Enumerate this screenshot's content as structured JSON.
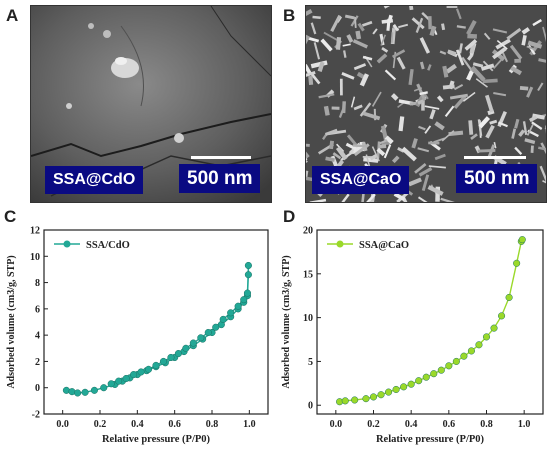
{
  "panels": {
    "A": {
      "letter": "A",
      "sample_label": "SSA@CdO",
      "scale_label": "500 nm"
    },
    "B": {
      "letter": "B",
      "sample_label": "SSA@CaO",
      "scale_label": "500 nm"
    },
    "C": {
      "letter": "C"
    },
    "D": {
      "letter": "D"
    }
  },
  "chart_data": [
    {
      "type": "line",
      "panel": "C",
      "xlabel": "Relative pressure (P/P0)",
      "ylabel": "Adsorbed volume (cm3/g, STP)",
      "xlim": [
        -0.1,
        1.1
      ],
      "ylim": [
        -2,
        12
      ],
      "xticks": [
        "0.0",
        "0.2",
        "0.4",
        "0.6",
        "0.8",
        "1.0"
      ],
      "yticks": [
        "-2",
        "0",
        "2",
        "4",
        "6",
        "8",
        "10",
        "12"
      ],
      "legend_placement": "top-left",
      "color": "#22a896",
      "series": [
        {
          "name": "SSA/CdO",
          "x": [
            0.02,
            0.05,
            0.08,
            0.12,
            0.17,
            0.22,
            0.28,
            0.32,
            0.36,
            0.4,
            0.45,
            0.5,
            0.55,
            0.6,
            0.65,
            0.7,
            0.75,
            0.8,
            0.85,
            0.9,
            0.94,
            0.97,
            0.99,
            0.995,
            0.995,
            0.99,
            0.97,
            0.94,
            0.9,
            0.86,
            0.82,
            0.78,
            0.74,
            0.7,
            0.66,
            0.62,
            0.58,
            0.54,
            0.5,
            0.46,
            0.42,
            0.38,
            0.34,
            0.3,
            0.26
          ],
          "y": [
            -0.2,
            -0.3,
            -0.4,
            -0.35,
            -0.2,
            0.0,
            0.25,
            0.5,
            0.75,
            1.0,
            1.3,
            1.6,
            1.9,
            2.3,
            2.75,
            3.2,
            3.7,
            4.2,
            4.8,
            5.4,
            6.0,
            6.5,
            7.0,
            8.6,
            9.3,
            7.2,
            6.7,
            6.2,
            5.7,
            5.2,
            4.6,
            4.2,
            3.8,
            3.4,
            3.0,
            2.6,
            2.3,
            2.0,
            1.7,
            1.4,
            1.2,
            1.0,
            0.7,
            0.5,
            0.3
          ]
        }
      ]
    },
    {
      "type": "line",
      "panel": "D",
      "xlabel": "Relative pressure (P/P0)",
      "ylabel": "Adsorbed volume (cm3/g, STP)",
      "xlim": [
        -0.1,
        1.1
      ],
      "ylim": [
        -1,
        20
      ],
      "xticks": [
        "0.0",
        "0.2",
        "0.4",
        "0.6",
        "0.8",
        "1.0"
      ],
      "yticks": [
        "0",
        "5",
        "10",
        "15",
        "20"
      ],
      "legend_placement": "top-left",
      "color": "#9ad92a",
      "series": [
        {
          "name": "SSA@CaO",
          "x": [
            0.02,
            0.05,
            0.1,
            0.16,
            0.2,
            0.24,
            0.28,
            0.32,
            0.36,
            0.4,
            0.44,
            0.48,
            0.52,
            0.56,
            0.6,
            0.64,
            0.68,
            0.72,
            0.76,
            0.8,
            0.84,
            0.88,
            0.92,
            0.96,
            0.985,
            0.99
          ],
          "y": [
            0.4,
            0.5,
            0.6,
            0.75,
            0.95,
            1.2,
            1.5,
            1.8,
            2.1,
            2.4,
            2.8,
            3.2,
            3.6,
            4.0,
            4.5,
            5.0,
            5.6,
            6.2,
            6.9,
            7.8,
            8.8,
            10.2,
            12.3,
            16.2,
            18.7,
            18.9
          ]
        }
      ]
    }
  ]
}
